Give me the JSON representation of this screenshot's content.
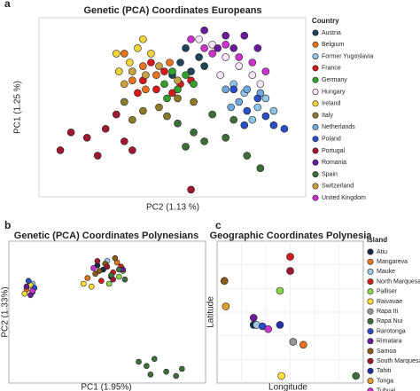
{
  "chart_data": [
    {
      "type": "scatter",
      "panel_label": "a",
      "title": "Genetic (PCA) Coordinates Europeans",
      "xlabel": "PC2 (1.13 %)",
      "ylabel": "PC1 (1.25 %)",
      "legend_title": "Country",
      "xlim": [
        0,
        100
      ],
      "ylim": [
        0,
        100
      ],
      "series": [
        {
          "name": "Austria",
          "color": "#1d4457",
          "x": [
            53,
            57,
            60,
            50,
            62,
            55
          ],
          "values": [
            75,
            70,
            78,
            68,
            73,
            83
          ]
        },
        {
          "name": "Belgium",
          "color": "#e8731a",
          "x": [
            32,
            39,
            44,
            35,
            49,
            40
          ],
          "values": [
            80,
            73,
            68,
            65,
            75,
            60
          ]
        },
        {
          "name": "Former Yugoslavia",
          "color": "#8ec5e8",
          "x": [
            77,
            82,
            85,
            80,
            73,
            88
          ],
          "values": [
            58,
            50,
            55,
            43,
            63,
            48
          ]
        },
        {
          "name": "France",
          "color": "#d7191c",
          "x": [
            39,
            44,
            47,
            50,
            53,
            42,
            57,
            37
          ],
          "values": [
            65,
            60,
            70,
            58,
            63,
            75,
            65,
            58
          ]
        },
        {
          "name": "Germany",
          "color": "#33a02c",
          "x": [
            47,
            52,
            55,
            50,
            58,
            48
          ],
          "values": [
            63,
            60,
            68,
            70,
            63,
            55
          ]
        },
        {
          "name": "Hungary",
          "color": "#f7e4f5",
          "x": [
            65,
            70,
            75,
            80,
            68,
            60,
            83
          ],
          "values": [
            85,
            78,
            73,
            68,
            68,
            88,
            63
          ]
        },
        {
          "name": "Ireland",
          "color": "#f0d53a",
          "x": [
            29,
            34,
            37,
            42,
            30,
            39
          ],
          "values": [
            80,
            75,
            83,
            80,
            70,
            88
          ]
        },
        {
          "name": "Italy",
          "color": "#8c7a2a",
          "x": [
            32,
            39,
            45,
            52,
            35,
            48,
            58
          ],
          "values": [
            53,
            48,
            50,
            55,
            43,
            45,
            53
          ]
        },
        {
          "name": "Netherlands",
          "color": "#6fa8dc",
          "x": [
            70,
            75,
            78,
            72,
            83
          ],
          "values": [
            60,
            53,
            60,
            50,
            58
          ]
        },
        {
          "name": "Poland",
          "color": "#2b4fc7",
          "x": [
            73,
            78,
            85,
            88,
            77,
            82,
            92
          ],
          "values": [
            60,
            48,
            45,
            40,
            40,
            55,
            38
          ]
        },
        {
          "name": "Portugal",
          "color": "#a01830",
          "x": [
            12,
            18,
            25,
            32,
            8,
            22,
            29,
            35,
            57
          ],
          "values": [
            36,
            33,
            38,
            31,
            26,
            23,
            46,
            26,
            4
          ]
        },
        {
          "name": "Romania",
          "color": "#6a1b9a",
          "x": [
            62,
            70,
            77,
            82,
            67,
            73
          ],
          "values": [
            93,
            90,
            90,
            83,
            83,
            83
          ]
        },
        {
          "name": "Spain",
          "color": "#3d6e3a",
          "x": [
            52,
            58,
            65,
            62,
            70,
            78,
            83,
            55,
            73
          ],
          "values": [
            41,
            36,
            46,
            31,
            33,
            23,
            16,
            28,
            43
          ]
        },
        {
          "name": "Switzerland",
          "color": "#c8a040",
          "x": [
            35,
            40,
            45,
            52,
            32
          ],
          "values": [
            70,
            68,
            73,
            65,
            63
          ]
        },
        {
          "name": "United Kingdom",
          "color": "#cc33cc",
          "x": [
            57,
            65,
            70,
            75,
            80,
            62,
            85
          ],
          "values": [
            88,
            80,
            85,
            78,
            75,
            83,
            70
          ]
        }
      ]
    },
    {
      "type": "scatter",
      "panel_label": "b",
      "title": "Genetic (PCA) Coordinates Polynesians",
      "xlabel": "PC1 (1.95%)",
      "ylabel": "PC2 (1.33%)",
      "xlim": [
        0,
        100
      ],
      "ylim": [
        0,
        100
      ],
      "series": [
        {
          "color": "#1a2a4a",
          "x": [
            48,
            52,
            45
          ],
          "values": [
            80,
            75,
            83
          ]
        },
        {
          "color": "#e8731a",
          "x": [
            40,
            9,
            55
          ],
          "values": [
            74,
            66,
            85
          ]
        },
        {
          "color": "#9ecae1",
          "x": [
            50,
            12
          ],
          "values": [
            86,
            70
          ]
        },
        {
          "color": "#d7191c",
          "x": [
            53,
            47,
            57
          ],
          "values": [
            78,
            72,
            82
          ]
        },
        {
          "color": "#8bd34a",
          "x": [
            56,
            51,
            58
          ],
          "values": [
            75,
            70,
            79
          ]
        },
        {
          "color": "#ffe033",
          "x": [
            38,
            42,
            8,
            11
          ],
          "values": [
            70,
            68,
            63,
            69
          ]
        },
        {
          "color": "#8c5a1a",
          "x": [
            44,
            49,
            54,
            46
          ],
          "values": [
            77,
            84,
            88,
            79
          ]
        },
        {
          "color": "#2b4fc7",
          "x": [
            10,
            13,
            12
          ],
          "values": [
            72,
            67,
            64
          ]
        },
        {
          "color": "#6a1b9a",
          "x": [
            9,
            11,
            58
          ],
          "values": [
            68,
            62,
            80
          ]
        },
        {
          "color": "#a01830",
          "x": [
            45,
            50,
            53
          ],
          "values": [
            86,
            82,
            73
          ]
        },
        {
          "color": "#3d6e3a",
          "x": [
            52,
            56,
            59,
            66,
            70,
            74,
            80,
            85,
            88,
            72
          ],
          "values": [
            76,
            80,
            73,
            15,
            12,
            17,
            8,
            5,
            10,
            6
          ]
        },
        {
          "color": "#cc33cc",
          "x": [
            43,
            12
          ],
          "values": [
            81,
            65
          ]
        }
      ]
    },
    {
      "type": "scatter",
      "panel_label": "c",
      "title": "Geographic Coordinates Polynesia",
      "xlabel": "Longitude",
      "ylabel": "Latitude",
      "legend_title": "Island",
      "xlim": [
        0,
        100
      ],
      "ylim": [
        0,
        100
      ],
      "grid": true,
      "series": [
        {
          "name": "Atiu",
          "color": "#1a2a4a",
          "x": [
            25
          ],
          "values": [
            41
          ]
        },
        {
          "name": "Mangareva",
          "color": "#e8731a",
          "x": [
            59
          ],
          "values": [
            27
          ]
        },
        {
          "name": "Mauke",
          "color": "#9ecae1",
          "x": [
            27
          ],
          "values": [
            41
          ]
        },
        {
          "name": "North Marquesas",
          "color": "#d7191c",
          "x": [
            50
          ],
          "values": [
            89
          ]
        },
        {
          "name": "Palliser",
          "color": "#8bd34a",
          "x": [
            43
          ],
          "values": [
            65
          ]
        },
        {
          "name": "Raivavae",
          "color": "#ffe033",
          "x": [
            44
          ],
          "values": [
            5
          ]
        },
        {
          "name": "Rapa Iti",
          "color": "#999999",
          "x": [
            52
          ],
          "values": [
            29
          ]
        },
        {
          "name": "Rapa Nui",
          "color": "#3d6e3a",
          "x": [
            95
          ],
          "values": [
            5
          ]
        },
        {
          "name": "Rarotonga",
          "color": "#2b4fc7",
          "x": [
            31
          ],
          "values": [
            40
          ]
        },
        {
          "name": "Rimatara",
          "color": "#6a1b9a",
          "x": [
            25
          ],
          "values": [
            46
          ]
        },
        {
          "name": "Samoa",
          "color": "#8c5a1a",
          "x": [
            5
          ],
          "values": [
            72
          ]
        },
        {
          "name": "South Marquesas",
          "color": "#a01830",
          "x": [
            50
          ],
          "values": [
            79
          ]
        },
        {
          "name": "Tahiti",
          "color": "#2233aa",
          "x": [
            43
          ],
          "values": [
            41
          ]
        },
        {
          "name": "Tonga",
          "color": "#e0a030",
          "x": [
            6
          ],
          "values": [
            54
          ]
        },
        {
          "name": "Tubuai",
          "color": "#cc33cc",
          "x": [
            35
          ],
          "values": [
            38
          ]
        }
      ]
    }
  ]
}
